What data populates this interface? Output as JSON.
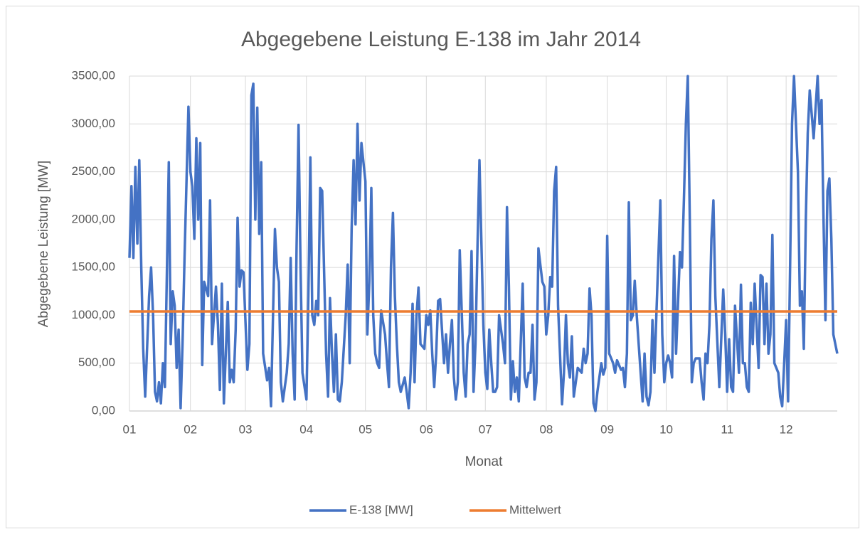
{
  "chart_data": {
    "type": "line",
    "title": "Abgegebene Leistung E-138 im Jahr 2014",
    "x_label": "Monat",
    "y_label": "Abgegebene Leistung [MW]",
    "xlim": [
      1,
      361
    ],
    "xticks": [
      {
        "value": 1,
        "label": "01"
      },
      {
        "value": 32,
        "label": "02"
      },
      {
        "value": 60,
        "label": "03"
      },
      {
        "value": 91,
        "label": "04"
      },
      {
        "value": 121,
        "label": "05"
      },
      {
        "value": 152,
        "label": "06"
      },
      {
        "value": 182,
        "label": "07"
      },
      {
        "value": 213,
        "label": "08"
      },
      {
        "value": 244,
        "label": "09"
      },
      {
        "value": 274,
        "label": "10"
      },
      {
        "value": 305,
        "label": "11"
      },
      {
        "value": 335,
        "label": "12"
      }
    ],
    "ylim": [
      0,
      3500
    ],
    "yticks": [
      {
        "value": 0,
        "label": "0,00"
      },
      {
        "value": 500,
        "label": "500,00"
      },
      {
        "value": 1000,
        "label": "1000,00"
      },
      {
        "value": 1500,
        "label": "1500,00"
      },
      {
        "value": 2000,
        "label": "2000,00"
      },
      {
        "value": 2500,
        "label": "2500,00"
      },
      {
        "value": 3000,
        "label": "3000,00"
      },
      {
        "value": 3500,
        "label": "3500,00"
      }
    ],
    "grid": true,
    "legend": "bottom",
    "series": [
      {
        "name": "E-138 [MW]",
        "color": "#4472c4",
        "x": [
          1,
          2,
          3,
          4,
          5,
          6,
          7,
          8,
          9,
          11,
          12,
          13,
          14,
          15,
          16,
          17,
          18,
          19,
          21,
          22,
          23,
          24,
          25,
          26,
          27,
          28,
          29,
          31,
          32,
          33,
          34,
          35,
          36,
          37,
          38,
          39,
          41,
          42,
          43,
          44,
          45,
          46,
          47,
          48,
          49,
          51,
          52,
          53,
          54,
          55,
          56,
          57,
          58,
          59,
          61,
          62,
          63,
          64,
          65,
          66,
          67,
          68,
          69,
          71,
          72,
          73,
          74,
          75,
          76,
          77,
          78,
          79,
          81,
          82,
          83,
          84,
          85,
          86,
          87,
          88,
          89,
          91,
          92,
          93,
          94,
          95,
          96,
          97,
          98,
          99,
          101,
          102,
          103,
          104,
          105,
          106,
          107,
          108,
          109,
          111,
          112,
          113,
          114,
          115,
          116,
          117,
          118,
          119,
          121,
          122,
          123,
          124,
          125,
          126,
          127,
          128,
          129,
          131,
          132,
          133,
          134,
          135,
          136,
          137,
          138,
          139,
          141,
          142,
          143,
          144,
          145,
          146,
          147,
          148,
          149,
          151,
          152,
          153,
          154,
          155,
          156,
          157,
          158,
          159,
          161,
          162,
          163,
          164,
          165,
          166,
          167,
          168,
          169,
          171,
          172,
          173,
          174,
          175,
          176,
          177,
          178,
          179,
          181,
          182,
          183,
          184,
          185,
          186,
          187,
          188,
          189,
          191,
          192,
          193,
          194,
          195,
          196,
          197,
          198,
          199,
          201,
          202,
          203,
          204,
          205,
          206,
          207,
          208,
          209,
          211,
          212,
          213,
          214,
          215,
          216,
          217,
          218,
          219,
          221,
          222,
          223,
          224,
          225,
          226,
          227,
          228,
          229,
          231,
          232,
          233,
          234,
          235,
          236,
          237,
          238,
          239,
          241,
          242,
          243,
          244,
          245,
          246,
          247,
          248,
          249,
          251,
          252,
          253,
          254,
          255,
          256,
          257,
          258,
          259,
          261,
          262,
          263,
          264,
          265,
          266,
          267,
          268,
          269,
          271,
          272,
          273,
          274,
          275,
          276,
          277,
          278,
          279,
          281,
          282,
          283,
          284,
          285,
          286,
          287,
          288,
          289,
          291,
          292,
          293,
          294,
          295,
          296,
          297,
          298,
          299,
          301,
          302,
          303,
          304,
          305,
          306,
          307,
          308,
          309,
          311,
          312,
          313,
          314,
          315,
          316,
          317,
          318,
          319,
          321,
          322,
          323,
          324,
          325,
          326,
          327,
          328,
          329,
          331,
          332,
          333,
          334,
          335,
          336,
          337,
          338,
          339,
          341,
          342,
          343,
          344,
          345,
          346,
          347,
          348,
          349,
          351,
          352,
          353,
          354,
          355,
          356,
          357,
          358,
          359,
          361
        ],
        "values": [
          1600,
          2350,
          1600,
          2550,
          1750,
          2620,
          1500,
          650,
          150,
          1200,
          1500,
          1000,
          200,
          100,
          300,
          80,
          500,
          250,
          2600,
          700,
          1250,
          1100,
          450,
          850,
          30,
          700,
          1600,
          3180,
          2500,
          2350,
          1800,
          2850,
          2000,
          2800,
          480,
          1350,
          1200,
          2200,
          700,
          1000,
          1300,
          900,
          220,
          1330,
          80,
          1140,
          300,
          430,
          300,
          850,
          2020,
          1300,
          1470,
          1450,
          430,
          700,
          3300,
          3420,
          2000,
          3170,
          1850,
          2600,
          600,
          320,
          450,
          50,
          1000,
          1900,
          1500,
          1350,
          300,
          100,
          400,
          700,
          1600,
          600,
          120,
          1700,
          2990,
          1500,
          400,
          120,
          1200,
          2650,
          1000,
          900,
          1150,
          1000,
          2330,
          2300,
          600,
          150,
          1180,
          600,
          200,
          800,
          120,
          100,
          300,
          1000,
          1530,
          500,
          1900,
          2620,
          1950,
          3000,
          2200,
          2800,
          2400,
          800,
          1350,
          2330,
          1000,
          600,
          500,
          450,
          1050,
          800,
          500,
          250,
          1500,
          2070,
          1200,
          700,
          300,
          200,
          350,
          200,
          30,
          400,
          1120,
          300,
          1000,
          1290,
          700,
          650,
          1000,
          900,
          1050,
          600,
          250,
          600,
          1150,
          1170,
          500,
          800,
          400,
          700,
          950,
          350,
          120,
          300,
          1680,
          400,
          150,
          700,
          800,
          1670,
          200,
          700,
          1700,
          2620,
          900,
          400,
          230,
          850,
          500,
          200,
          200,
          250,
          1000,
          700,
          500,
          2130,
          1300,
          120,
          520,
          200,
          350,
          100,
          1330,
          350,
          250,
          400,
          400,
          900,
          120,
          300,
          1700,
          1350,
          1300,
          800,
          1000,
          1400,
          1300,
          2300,
          2550,
          1100,
          70,
          400,
          1000,
          500,
          350,
          780,
          150,
          300,
          450,
          400,
          650,
          500,
          600,
          1280,
          1000,
          80,
          0,
          200,
          500,
          380,
          450,
          1830,
          600,
          550,
          500,
          400,
          530,
          430,
          450,
          250,
          600,
          2180,
          950,
          1000,
          1360,
          1000,
          400,
          100,
          600,
          150,
          60,
          200,
          950,
          400,
          1000,
          2200,
          800,
          300,
          500,
          580,
          500,
          350,
          1620,
          600,
          1660,
          1500,
          2200,
          3000,
          3500,
          2000,
          300,
          500,
          550,
          550,
          300,
          120,
          600,
          500,
          900,
          1800,
          2200,
          1200,
          250,
          750,
          1270,
          800,
          200,
          750,
          250,
          200,
          1100,
          400,
          1320,
          500,
          500,
          250,
          200,
          1130,
          700,
          1330,
          450,
          1420,
          1400,
          700,
          1330,
          600,
          800,
          1840,
          500,
          400,
          150,
          50,
          500,
          950,
          100,
          1500,
          3000,
          3500,
          2500,
          1100,
          1250,
          650,
          2000,
          2900,
          3350,
          3100,
          2850,
          3500,
          3000,
          3250,
          2000,
          950,
          2300,
          2430,
          1800,
          800,
          600
        ]
      },
      {
        "name": "Mittelwert",
        "color": "#ed7d31",
        "x": [
          1,
          361
        ],
        "values": [
          1040,
          1040
        ]
      }
    ]
  }
}
